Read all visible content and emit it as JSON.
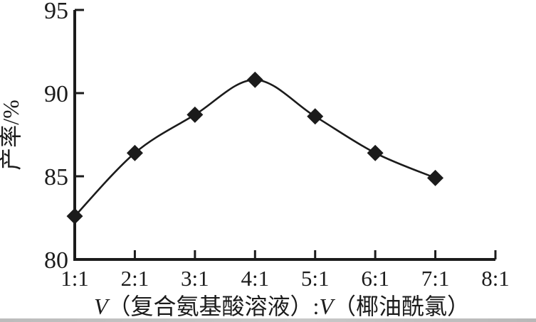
{
  "chart_data": {
    "type": "line",
    "title": "",
    "categories": [
      "1:1",
      "2:1",
      "3:1",
      "4:1",
      "5:1",
      "6:1",
      "7:1"
    ],
    "x_axis_categories": [
      "1:1",
      "2:1",
      "3:1",
      "4:1",
      "5:1",
      "6:1",
      "7:1",
      "8:1"
    ],
    "values": [
      82.6,
      86.4,
      88.7,
      90.8,
      88.6,
      86.4,
      84.9
    ],
    "xlabel": "V（复合氨基酸溶液）:V（椰油酰氯）",
    "xlabel_parts": {
      "v1": "V",
      "mid": "（复合氨基酸溶液）:",
      "v2": "V",
      "tail": "（椰油酰氯）"
    },
    "ylabel": "产率/%",
    "ylim": [
      80,
      95
    ],
    "yticks": [
      80,
      85,
      90,
      95
    ],
    "grid": false,
    "legend_position": "none",
    "marker": "diamond",
    "line_color": "#1b1b1b",
    "marker_color": "#1b1b1b",
    "background_color": "#ffffff"
  }
}
